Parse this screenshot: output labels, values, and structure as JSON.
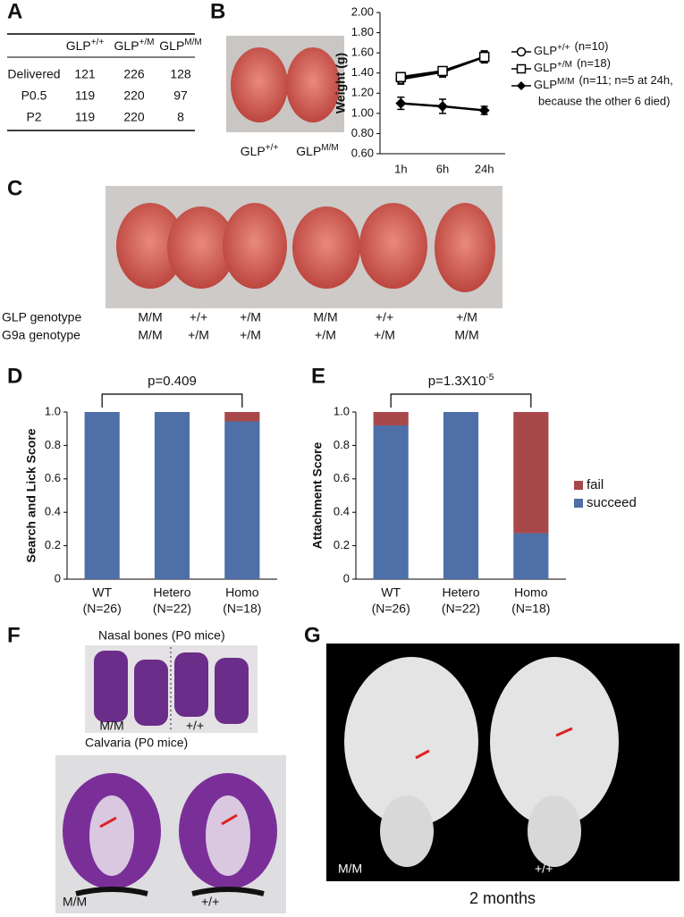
{
  "panels": [
    "A",
    "B",
    "C",
    "D",
    "E",
    "F",
    "G"
  ],
  "table": {
    "columns": [
      {
        "base": "GLP",
        "sup": "+/+"
      },
      {
        "base": "GLP",
        "sup": "+/M"
      },
      {
        "base": "GLP",
        "sup": "M/M"
      }
    ],
    "rows": [
      {
        "label": "Delivered",
        "cells": [
          121,
          226,
          128
        ]
      },
      {
        "label": "P0.5",
        "cells": [
          119,
          220,
          97
        ]
      },
      {
        "label": "P2",
        "cells": [
          119,
          220,
          8
        ]
      }
    ]
  },
  "photo_labels": [
    {
      "base": "GLP",
      "sup": "+/+"
    },
    {
      "base": "GLP",
      "sup": "M/M"
    }
  ],
  "genotypes": [
    {
      "label": "GLP genotype",
      "values": [
        "M/M",
        "+/+",
        "+/M",
        "M/M",
        "+/+",
        "+/M"
      ]
    },
    {
      "label": "G9a genotype",
      "values": [
        "M/M",
        "+/M",
        "+/M",
        "+/M",
        "+/M",
        "M/M"
      ]
    }
  ],
  "chart_data": [
    {
      "type": "line",
      "ylabel": "Weight (g)",
      "categories": [
        "1h",
        "6h",
        "24h"
      ],
      "ylim": [
        0.6,
        2.0
      ],
      "yticks": [
        {
          "value": 0.6,
          "label": "0.60"
        },
        {
          "value": 0.8,
          "label": "0.80"
        },
        {
          "value": 1.0,
          "label": "1.00"
        },
        {
          "value": 1.2,
          "label": "1.20"
        },
        {
          "value": 1.4,
          "label": "1.40"
        },
        {
          "value": 1.6,
          "label": "1.60"
        },
        {
          "value": 1.8,
          "label": "1.80"
        },
        {
          "value": 2.0,
          "label": "2.00"
        }
      ],
      "series": [
        {
          "name": "GLP",
          "name_sup": "+/+",
          "note": [
            "(n=10)"
          ],
          "color": "#000000",
          "marker": "circle",
          "values": [
            1.34,
            1.41,
            1.56
          ],
          "errors": [
            0.05,
            0.05,
            0.06
          ]
        },
        {
          "name": "GLP",
          "name_sup": "+/M",
          "note": [
            "(n=18)"
          ],
          "color": "#000000",
          "marker": "square",
          "values": [
            1.36,
            1.42,
            1.56
          ],
          "errors": [
            0.04,
            0.04,
            0.05
          ]
        },
        {
          "name": "GLP",
          "name_sup": "M/M",
          "note": [
            "(n=11; n=5 at 24h,",
            "because the other 6 died)"
          ],
          "color": "#000000",
          "marker": "diamond",
          "values": [
            1.1,
            1.07,
            1.03
          ],
          "errors": [
            0.06,
            0.07,
            0.04
          ]
        }
      ]
    },
    {
      "type": "bar",
      "stacked": true,
      "legend": false,
      "ylabel": "Search and Lick Score",
      "annotation": {
        "text": "p=0.409"
      },
      "categories": [
        [
          "WT",
          "(N=26)"
        ],
        [
          "Hetero",
          "(N=22)"
        ],
        [
          "Homo",
          "(N=18)"
        ]
      ],
      "ylim": [
        0,
        1
      ],
      "yticks": [
        0,
        0.2,
        0.4,
        0.6,
        0.8,
        {
          "value": 1,
          "label": "1.0"
        }
      ],
      "series": [
        {
          "name": "succeed",
          "color": "#4e6fa7",
          "values": [
            1,
            1,
            0.944
          ]
        },
        {
          "name": "fail",
          "color": "#a8484a",
          "values": [
            0,
            0,
            0.056
          ]
        }
      ]
    },
    {
      "type": "bar",
      "stacked": true,
      "legend": true,
      "ylabel": "Attachment Score",
      "annotation": {
        "text": "p=1.3X10",
        "sup": "-5"
      },
      "categories": [
        [
          "WT",
          "(N=26)"
        ],
        [
          "Hetero",
          "(N=22)"
        ],
        [
          "Homo",
          "(N=18)"
        ]
      ],
      "ylim": [
        0,
        1
      ],
      "yticks": [
        0,
        0.2,
        0.4,
        0.6,
        0.8,
        {
          "value": 1,
          "label": "1.0"
        }
      ],
      "series": [
        {
          "name": "succeed",
          "color": "#4e6fa7",
          "values": [
            0.92,
            1,
            0.275
          ]
        },
        {
          "name": "fail",
          "color": "#a8484a",
          "values": [
            0.08,
            0,
            0.725
          ]
        }
      ]
    }
  ],
  "panel_f": {
    "nasal_title": "Nasal bones (P0 mice)",
    "nasal_labels": [
      "M/M",
      "+/+"
    ],
    "calvaria_title": "Calvaria (P0 mice)",
    "calvaria_labels": [
      "M/M",
      "+/+"
    ]
  },
  "panel_g": {
    "labels": [
      "M/M",
      "+/+"
    ],
    "caption": "2 months"
  }
}
